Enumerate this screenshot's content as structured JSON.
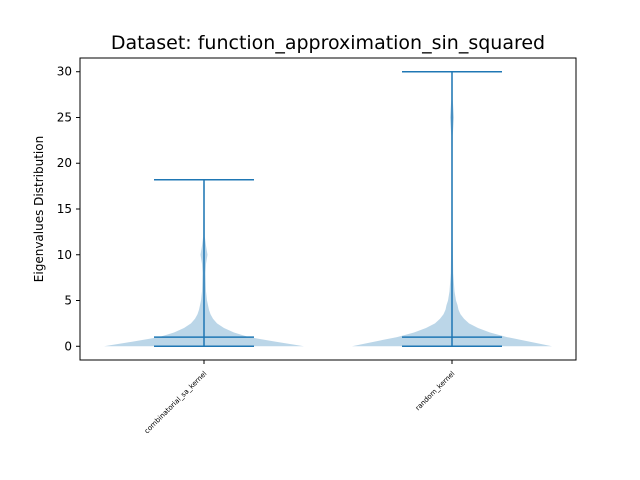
{
  "chart_data": {
    "type": "violin",
    "title": "Dataset: function_approximation_sin_squared",
    "xlabel": "",
    "ylabel": "Eigenvalues Distribution",
    "ylim": [
      -1.5,
      31.5
    ],
    "yticks": [
      0,
      5,
      10,
      15,
      20,
      25,
      30
    ],
    "categories": [
      "combinatorial_sa_kernel",
      "random_kernel"
    ],
    "series": [
      {
        "min": 0.0,
        "max": 18.2,
        "median": 1.0,
        "density": [
          [
            0.0,
            1.0
          ],
          [
            0.5,
            0.72
          ],
          [
            1.0,
            0.45
          ],
          [
            1.5,
            0.3
          ],
          [
            2.0,
            0.2
          ],
          [
            2.5,
            0.13
          ],
          [
            3.0,
            0.09
          ],
          [
            3.5,
            0.065
          ],
          [
            4.0,
            0.05
          ],
          [
            4.5,
            0.04
          ],
          [
            5.0,
            0.03
          ],
          [
            6.0,
            0.02
          ],
          [
            8.0,
            0.015
          ],
          [
            9.0,
            0.02
          ],
          [
            10.0,
            0.035
          ],
          [
            11.0,
            0.02
          ],
          [
            12.0,
            0.008
          ],
          [
            15.0,
            0.006
          ],
          [
            17.5,
            0.007
          ],
          [
            18.2,
            0.005
          ]
        ]
      },
      {
        "min": 0.0,
        "max": 30.0,
        "median": 1.0,
        "density": [
          [
            0.0,
            1.0
          ],
          [
            0.5,
            0.78
          ],
          [
            1.0,
            0.55
          ],
          [
            1.5,
            0.38
          ],
          [
            2.0,
            0.26
          ],
          [
            2.5,
            0.17
          ],
          [
            3.0,
            0.12
          ],
          [
            3.5,
            0.085
          ],
          [
            4.0,
            0.065
          ],
          [
            4.5,
            0.055
          ],
          [
            5.0,
            0.04
          ],
          [
            6.0,
            0.025
          ],
          [
            8.0,
            0.012
          ],
          [
            12.0,
            0.007
          ],
          [
            20.0,
            0.006
          ],
          [
            23.0,
            0.007
          ],
          [
            25.0,
            0.02
          ],
          [
            27.0,
            0.007
          ],
          [
            29.0,
            0.006
          ],
          [
            30.0,
            0.005
          ]
        ]
      }
    ],
    "colors": {
      "body": "#1f77b4",
      "body_alpha": 0.3,
      "lines": "#1f77b4"
    },
    "grid": false
  }
}
